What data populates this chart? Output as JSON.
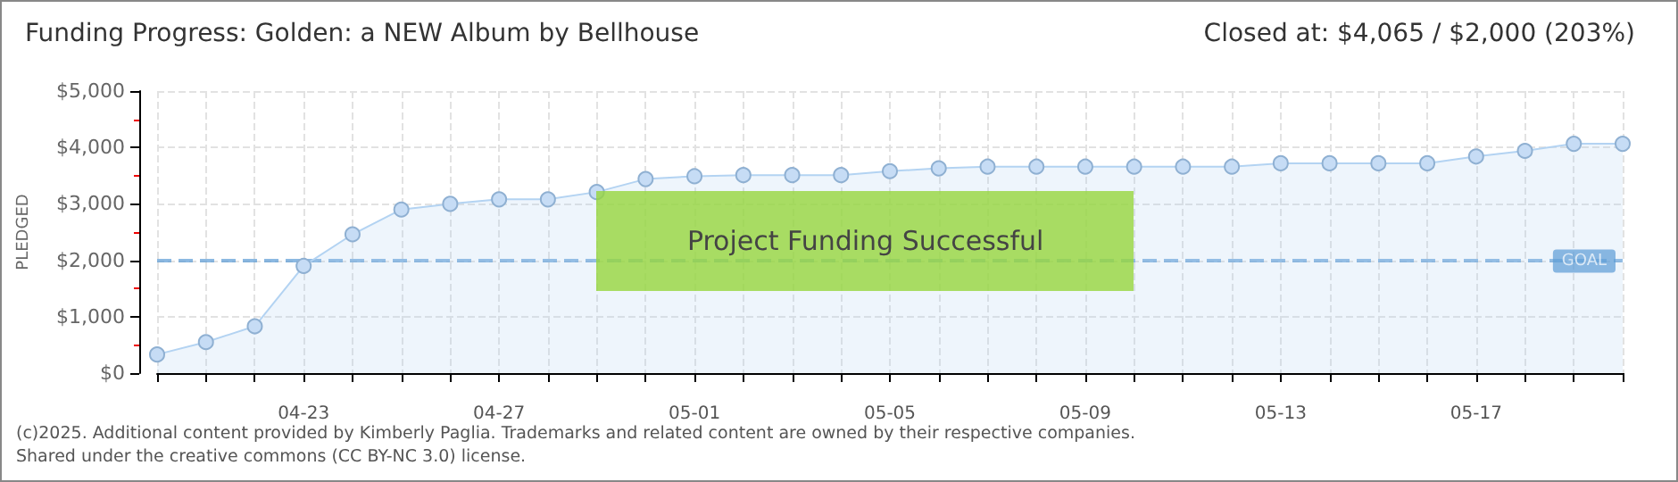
{
  "chart_data": {
    "type": "area",
    "title": "Funding Progress: Golden: a NEW Album by Bellhouse",
    "subtitle": "Closed at: $4,065 / $2,000 (203%)",
    "ylabel": "PLEDGED",
    "categories": [
      null,
      null,
      null,
      "04-23",
      null,
      null,
      null,
      "04-27",
      null,
      null,
      null,
      "05-01",
      null,
      null,
      null,
      "05-05",
      null,
      null,
      null,
      "05-09",
      null,
      null,
      null,
      "05-13",
      null,
      null,
      null,
      "05-17",
      null,
      null,
      null
    ],
    "series": [
      {
        "color": "#b3d3f2",
        "values": [
          330,
          550,
          830,
          1900,
          2460,
          2900,
          3000,
          3080,
          3080,
          3210,
          3440,
          3490,
          3510,
          3510,
          3510,
          3580,
          3630,
          3660,
          3660,
          3660,
          3660,
          3660,
          3660,
          3720,
          3720,
          3720,
          3720,
          3840,
          3940,
          4065,
          4065
        ]
      }
    ],
    "ylim": [
      0,
      5000
    ],
    "yticks": [
      {
        "value": 0,
        "label": "$0"
      },
      {
        "value": 1000,
        "label": "$1,000"
      },
      {
        "value": 2000,
        "label": "$2,000"
      },
      {
        "value": 3000,
        "label": "$3,000"
      },
      {
        "value": 4000,
        "label": "$4,000"
      },
      {
        "value": 5000,
        "label": "$5,000"
      }
    ],
    "ref_lines": [
      {
        "axis": "y",
        "value": 2000,
        "label": "GOAL",
        "color": "#5b9bd5",
        "line_style": "dashed"
      }
    ],
    "annotations": [
      "Project Funding Successful",
      "(c)2025. Additional content provided by Kimberly Paglia. Trademarks and related content are owned by their respective companies.",
      "Shared under the creative commons (CC BY-NC 3.0) license."
    ],
    "grid": true,
    "marker": "circle"
  }
}
